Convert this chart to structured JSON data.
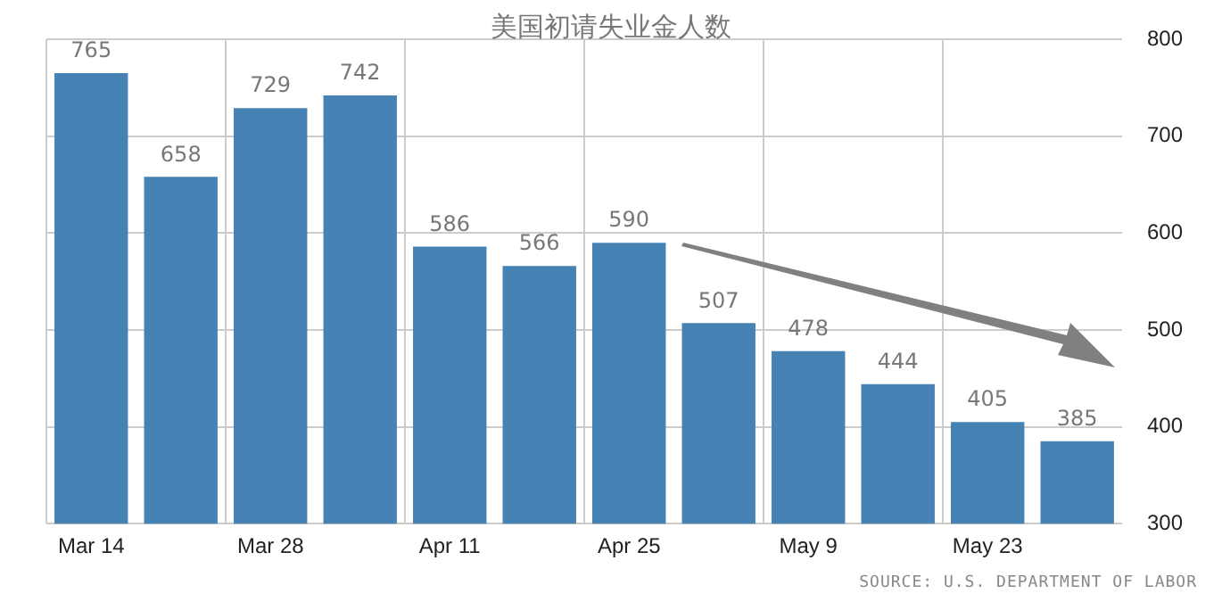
{
  "chart_data": {
    "type": "bar",
    "title": "美国初请失业金人数",
    "categories": [
      "Mar 14",
      null,
      "Mar 28",
      null,
      "Apr 11",
      null,
      "Apr 25",
      null,
      "May 9",
      null,
      "May 23",
      null
    ],
    "values": [
      765,
      658,
      729,
      742,
      586,
      566,
      590,
      507,
      478,
      444,
      405,
      385
    ],
    "color": "#4682b4",
    "ylim": [
      300,
      800
    ],
    "yticks": [
      300,
      400,
      500,
      600,
      700,
      800
    ],
    "grid": true,
    "data_labels": true,
    "annotations": [
      "SOURCE: U.S. DEPARTMENT OF LABOR"
    ]
  }
}
